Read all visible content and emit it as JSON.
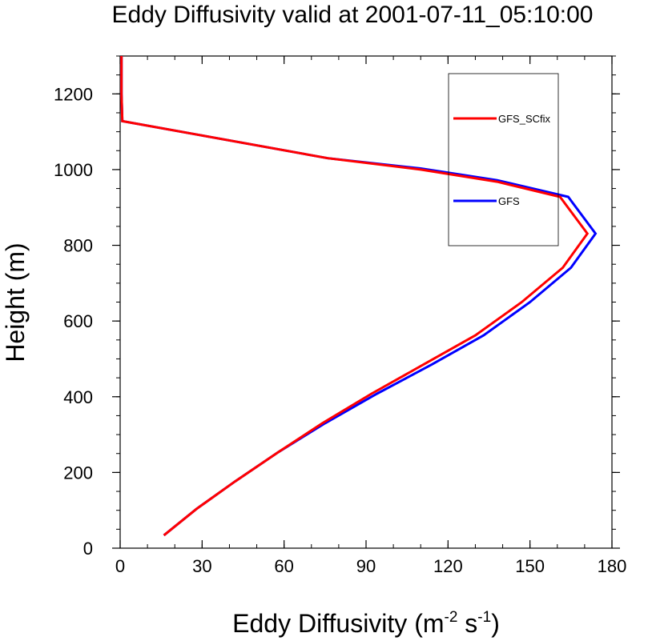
{
  "chart_data": {
    "type": "line",
    "title": "Eddy Diffusivity valid at 2001-07-11_05:10:00",
    "xlabel_main": "Eddy Diffusivity (m",
    "xlabel_sup1": "-2",
    "xlabel_mid": " s",
    "xlabel_sup2": "-1",
    "xlabel_end": ")",
    "ylabel": "Height (m)",
    "xlim": [
      0,
      180
    ],
    "ylim": [
      0,
      1300
    ],
    "xticks": [
      0,
      30,
      60,
      90,
      120,
      150,
      180
    ],
    "xtick_labels": [
      "0",
      "30",
      "60",
      "90",
      "120",
      "150",
      "180"
    ],
    "yticks": [
      0,
      200,
      400,
      600,
      800,
      1000,
      1200
    ],
    "ytick_labels": [
      "0",
      "200",
      "400",
      "600",
      "800",
      "1000",
      "1200"
    ],
    "legend_position": "top-right",
    "series": [
      {
        "name": "GFS_SCfix",
        "color": "#ff0000",
        "x": [
          16,
          28,
          42,
          58,
          74,
          92,
          111,
          130,
          147,
          162,
          171,
          161,
          138,
          110,
          76,
          30,
          0.8,
          0.5,
          0.5
        ],
        "y": [
          34,
          104,
          176,
          254,
          330,
          408,
          485,
          562,
          650,
          741,
          831,
          928,
          968,
          1000,
          1030,
          1090,
          1128,
          1200,
          1300
        ]
      },
      {
        "name": "GFS",
        "color": "#0000ff",
        "x": [
          16,
          28,
          42,
          58,
          75,
          94,
          114,
          133,
          150,
          165,
          174,
          164,
          138,
          110,
          76,
          30,
          0.8,
          0.5,
          0.5
        ],
        "y": [
          34,
          104,
          176,
          254,
          330,
          408,
          485,
          562,
          650,
          741,
          831,
          928,
          972,
          1003,
          1030,
          1090,
          1128,
          1200,
          1300
        ]
      }
    ]
  }
}
